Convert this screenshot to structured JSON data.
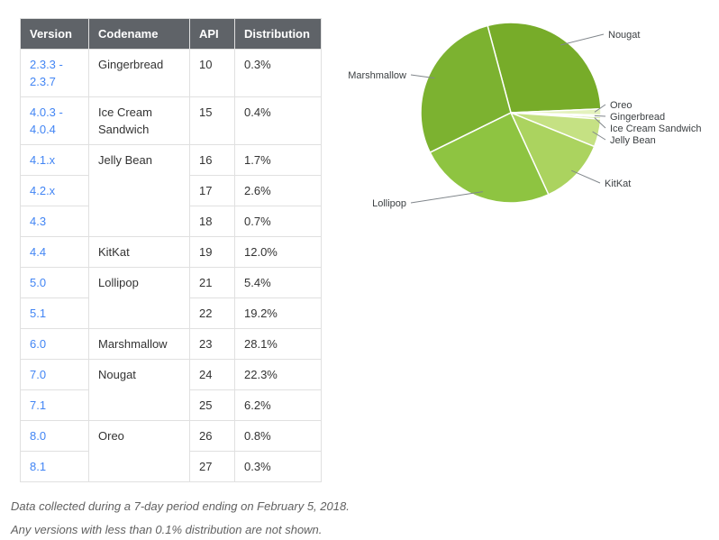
{
  "colors": {
    "header_bg": "#5f6368",
    "link_blue": "#4285f4",
    "table_border": "#e0e0e0"
  },
  "table": {
    "headers": [
      "Version",
      "Codename",
      "API",
      "Distribution"
    ],
    "rows": [
      {
        "version": "2.3.3 - 2.3.7",
        "codename": "Gingerbread",
        "rowspan": 1,
        "api": "10",
        "distribution": "0.3%"
      },
      {
        "version": "4.0.3 - 4.0.4",
        "codename": "Ice Cream Sandwich",
        "rowspan": 1,
        "api": "15",
        "distribution": "0.4%"
      },
      {
        "version": "4.1.x",
        "codename": "Jelly Bean",
        "rowspan": 3,
        "api": "16",
        "distribution": "1.7%"
      },
      {
        "version": "4.2.x",
        "api": "17",
        "distribution": "2.6%"
      },
      {
        "version": "4.3",
        "api": "18",
        "distribution": "0.7%"
      },
      {
        "version": "4.4",
        "codename": "KitKat",
        "rowspan": 1,
        "api": "19",
        "distribution": "12.0%"
      },
      {
        "version": "5.0",
        "codename": "Lollipop",
        "rowspan": 2,
        "api": "21",
        "distribution": "5.4%"
      },
      {
        "version": "5.1",
        "api": "22",
        "distribution": "19.2%"
      },
      {
        "version": "6.0",
        "codename": "Marshmallow",
        "rowspan": 1,
        "api": "23",
        "distribution": "28.1%"
      },
      {
        "version": "7.0",
        "codename": "Nougat",
        "rowspan": 2,
        "api": "24",
        "distribution": "22.3%"
      },
      {
        "version": "7.1",
        "api": "25",
        "distribution": "6.2%"
      },
      {
        "version": "8.0",
        "codename": "Oreo",
        "rowspan": 2,
        "api": "26",
        "distribution": "0.8%"
      },
      {
        "version": "8.1",
        "api": "27",
        "distribution": "0.3%"
      }
    ]
  },
  "chart_data": {
    "type": "pie",
    "unit": "%",
    "start_angle_deg": -105,
    "clockwise": true,
    "legend_position": "leader-line labels around pie",
    "slices": [
      {
        "label": "Nougat",
        "value": 28.5,
        "color": "#77ac29"
      },
      {
        "label": "Oreo",
        "value": 1.1,
        "color": "#e4f2bd"
      },
      {
        "label": "Gingerbread",
        "value": 0.3,
        "color": "#d8eca7"
      },
      {
        "label": "Ice Cream Sandwich",
        "value": 0.4,
        "color": "#cfe795"
      },
      {
        "label": "Jelly Bean",
        "value": 5.0,
        "color": "#c5e183"
      },
      {
        "label": "KitKat",
        "value": 12.0,
        "color": "#abd35f"
      },
      {
        "label": "Lollipop",
        "value": 24.6,
        "color": "#8ec441"
      },
      {
        "label": "Marshmallow",
        "value": 28.1,
        "color": "#7cb230"
      }
    ]
  },
  "footer": {
    "line1": "Data collected during a 7-day period ending on February 5, 2018.",
    "line2": "Any versions with less than 0.1% distribution are not shown."
  }
}
